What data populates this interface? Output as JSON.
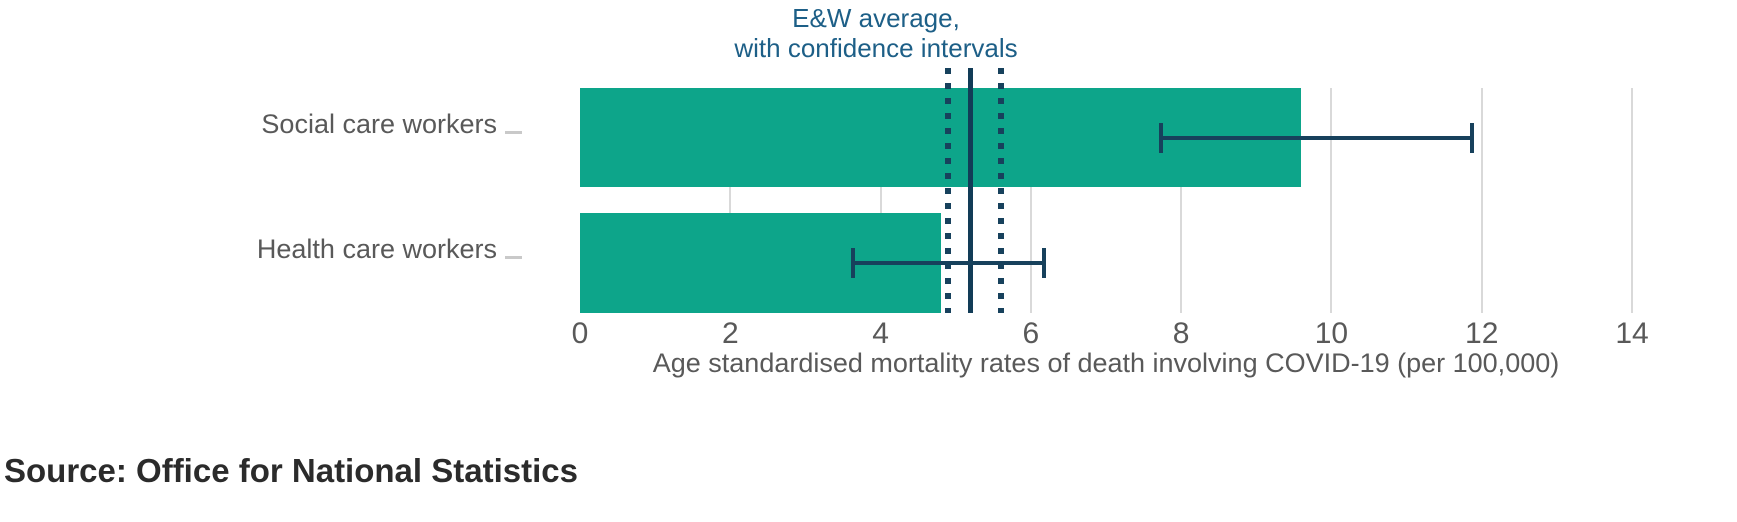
{
  "colors": {
    "bar": "#0da58a",
    "interval": "#17415c",
    "average_line": "#123c57",
    "annotation_text": "#1d5f87",
    "axis_text": "#595959",
    "gridline": "#d9d9d9",
    "category_tick": "#c9c9c9",
    "source_text": "#2b2b2b"
  },
  "chart_data": {
    "type": "bar",
    "orientation": "horizontal",
    "categories": [
      "Social care workers",
      "Health care workers"
    ],
    "values": [
      9.6,
      4.8
    ],
    "confidence_intervals": [
      [
        7.7,
        11.9
      ],
      [
        3.6,
        6.2
      ]
    ],
    "reference_line": {
      "label_line1": "E&W average,",
      "label_line2": "with confidence intervals",
      "value": 5.2,
      "ci": [
        4.9,
        5.6
      ]
    },
    "xlabel": "Age standardised mortality rates of death involving COVID-19 (per 100,000)",
    "x_ticks": [
      "0",
      "2",
      "4",
      "6",
      "8",
      "10",
      "12",
      "14"
    ],
    "xlim": [
      0,
      14
    ],
    "grid": true,
    "legend": "none",
    "source": "Source: Office for National Statistics"
  }
}
